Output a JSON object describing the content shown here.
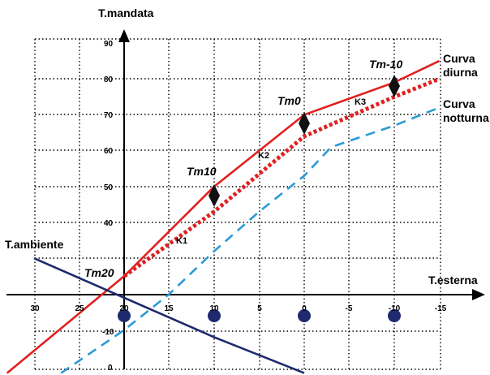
{
  "chart_data": {
    "type": "line",
    "xlabel": "T.esterna",
    "ylabel": "T.mandata",
    "extra_axis_label": "T.ambiente",
    "x_ticks": [
      30,
      25,
      20,
      15,
      10,
      5,
      0,
      -5,
      -10,
      -15
    ],
    "y_ticks_left": [
      90,
      80,
      70,
      60,
      50,
      40
    ],
    "y_ticks_lower": [
      -10,
      0
    ],
    "x_axis_reversed": true,
    "ylim": [
      -2,
      90
    ],
    "grid": "dotted",
    "series": [
      {
        "name": "Curva diurna",
        "color": "#e02020",
        "style": "solid",
        "x": [
          33,
          20,
          10,
          5,
          0,
          -10,
          -15
        ],
        "y": [
          -2,
          25,
          50,
          60,
          70,
          79,
          85
        ]
      },
      {
        "name": "Curva notturna",
        "color": "#e02020",
        "style": "dotted",
        "x": [
          20,
          10,
          0,
          -10,
          -15
        ],
        "y": [
          25,
          43,
          64,
          75,
          80
        ]
      },
      {
        "name": "",
        "color": "#2a9ad6",
        "style": "dashed",
        "x": [
          27,
          20,
          15,
          10,
          5,
          0,
          -3,
          -10,
          -15
        ],
        "y": [
          -2,
          10,
          20,
          32,
          43,
          53,
          61,
          67,
          72
        ]
      },
      {
        "name": "",
        "color": "#1f2a6e",
        "style": "solid",
        "x": [
          30,
          10,
          0
        ],
        "y": [
          30,
          8,
          -2
        ]
      }
    ],
    "points": [
      {
        "label": "Tm20",
        "x": 20,
        "y": 25
      },
      {
        "label": "Tm10",
        "x": 10,
        "y": 50
      },
      {
        "label": "Tm0",
        "x": 0,
        "y": 70
      },
      {
        "label": "Tm-10",
        "x": -10,
        "y": 79
      }
    ],
    "slope_labels": [
      {
        "label": "K1",
        "x": 14,
        "y": 36
      },
      {
        "label": "K2",
        "x": 5,
        "y": 57
      },
      {
        "label": "K3",
        "x": -6,
        "y": 75
      }
    ],
    "markers_on_axis_x": [
      20,
      10,
      0,
      -10
    ],
    "marker_color": "#1f2a6e"
  }
}
